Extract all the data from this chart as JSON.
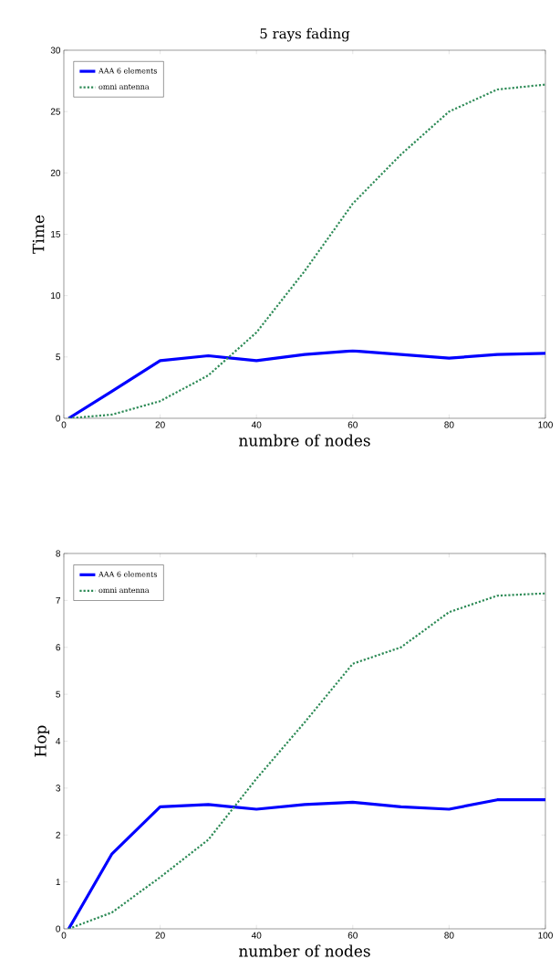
{
  "chart_data": [
    {
      "type": "line",
      "title": "5 rays fading",
      "xlabel": "numbre of nodes",
      "ylabel": "Time",
      "x": [
        1,
        10,
        20,
        30,
        40,
        50,
        60,
        70,
        80,
        90,
        100
      ],
      "series": [
        {
          "name": "AAA 6 elements",
          "color": "#0000ff",
          "line_style": "solid",
          "values": [
            0,
            2.2,
            4.7,
            5.1,
            4.7,
            5.2,
            5.5,
            5.2,
            4.9,
            5.2,
            5.3
          ]
        },
        {
          "name": "omni antenna",
          "color": "#2e8b57",
          "line_style": "dotted",
          "values": [
            0,
            0.3,
            1.4,
            3.5,
            7.0,
            12.0,
            17.5,
            21.5,
            25.0,
            26.8,
            27.2
          ]
        }
      ],
      "xlim": [
        0,
        100
      ],
      "ylim": [
        0,
        30
      ],
      "xticks": [
        0,
        20,
        40,
        60,
        80,
        100
      ],
      "yticks": [
        0,
        5,
        10,
        15,
        20,
        25,
        30
      ],
      "legend": "top left",
      "grid": false
    },
    {
      "type": "line",
      "xlabel": "number of nodes",
      "ylabel": "Hop",
      "x": [
        1,
        10,
        20,
        30,
        40,
        50,
        60,
        70,
        80,
        90,
        100
      ],
      "series": [
        {
          "name": "AAA 6 elements",
          "color": "#0000ff",
          "line_style": "solid",
          "values": [
            0,
            1.6,
            2.6,
            2.65,
            2.55,
            2.65,
            2.7,
            2.6,
            2.55,
            2.75,
            2.75
          ]
        },
        {
          "name": "omni antenna",
          "color": "#2e8b57",
          "line_style": "dotted",
          "values": [
            0,
            0.35,
            1.1,
            1.9,
            3.2,
            4.4,
            5.65,
            6.0,
            6.75,
            7.1,
            7.15
          ]
        }
      ],
      "xlim": [
        0,
        100
      ],
      "ylim": [
        0,
        8
      ],
      "xticks": [
        0,
        20,
        40,
        60,
        80,
        100
      ],
      "yticks": [
        0,
        1,
        2,
        3,
        4,
        5,
        6,
        7,
        8
      ],
      "legend": "top left",
      "grid": false
    }
  ]
}
